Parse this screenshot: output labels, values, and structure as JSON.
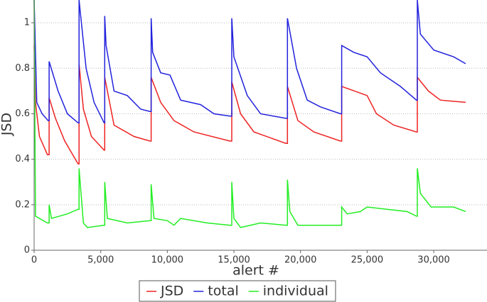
{
  "chart_data": {
    "type": "line",
    "x_label": "alert #",
    "y_label": "JSD",
    "xlim": [
      0,
      34000
    ],
    "ylim": [
      0,
      1.1
    ],
    "xticks": [
      0,
      {
        "value": 5000,
        "label": "5,000"
      },
      {
        "value": 10000,
        "label": "10,000"
      },
      {
        "value": 15000,
        "label": "15,000"
      },
      {
        "value": 20000,
        "label": "20,000"
      },
      {
        "value": 25000,
        "label": "25,000"
      },
      {
        "value": 30000,
        "label": "30,000"
      }
    ],
    "yticks": [
      0,
      0.2,
      0.4,
      0.6,
      0.8,
      1
    ],
    "grid": true,
    "legend": "bottom",
    "series": [
      {
        "name": "JSD",
        "color": "#ee2222",
        "x": [
          0,
          100,
          400,
          1000,
          1125,
          1125,
          1600,
          2300,
          3300,
          3375,
          3375,
          3700,
          4300,
          5250,
          5300,
          5300,
          6000,
          7500,
          8700,
          8785,
          8785,
          9500,
          10500,
          12000,
          14700,
          14840,
          14840,
          15500,
          16500,
          18900,
          19020,
          19020,
          19800,
          21000,
          23000,
          23090,
          23090,
          25000,
          25700,
          27000,
          28700,
          28770,
          28770,
          29600,
          30500,
          32400
        ],
        "values": [
          0.9,
          0.65,
          0.5,
          0.42,
          0.42,
          0.67,
          0.58,
          0.48,
          0.38,
          0.38,
          0.82,
          0.62,
          0.5,
          0.44,
          0.44,
          0.76,
          0.55,
          0.5,
          0.48,
          0.48,
          0.76,
          0.65,
          0.57,
          0.52,
          0.48,
          0.48,
          0.74,
          0.6,
          0.52,
          0.47,
          0.47,
          0.72,
          0.57,
          0.52,
          0.48,
          0.48,
          0.72,
          0.68,
          0.6,
          0.55,
          0.52,
          0.52,
          0.76,
          0.7,
          0.66,
          0.65
        ]
      },
      {
        "name": "total",
        "color": "#2222dd",
        "x": [
          0,
          200,
          600,
          1050,
          1125,
          1125,
          1800,
          2500,
          3300,
          3375,
          3375,
          3900,
          4500,
          5250,
          5300,
          5300,
          5400,
          6000,
          7000,
          8000,
          8700,
          8785,
          8785,
          8900,
          9500,
          10200,
          11000,
          12500,
          13500,
          14700,
          14840,
          14840,
          15000,
          16000,
          17000,
          18900,
          19020,
          19020,
          19700,
          20500,
          21500,
          23000,
          23090,
          23090,
          24000,
          25000,
          26000,
          27500,
          28700,
          28770,
          28770,
          29000,
          30000,
          31500,
          32400
        ],
        "values": [
          1.1,
          0.65,
          0.6,
          0.57,
          0.57,
          0.83,
          0.7,
          0.6,
          0.56,
          0.56,
          1.1,
          0.8,
          0.65,
          0.56,
          0.56,
          1.03,
          0.9,
          0.7,
          0.68,
          0.62,
          0.61,
          0.61,
          1.02,
          0.87,
          0.78,
          0.77,
          0.66,
          0.64,
          0.6,
          0.59,
          0.59,
          1.02,
          0.85,
          0.68,
          0.6,
          0.58,
          0.58,
          1.02,
          0.8,
          0.66,
          0.63,
          0.6,
          0.6,
          0.9,
          0.87,
          0.85,
          0.78,
          0.72,
          0.66,
          0.66,
          1.1,
          0.95,
          0.88,
          0.85,
          0.82
        ]
      },
      {
        "name": "individual",
        "color": "#22ee22",
        "x": [
          0,
          100,
          1000,
          1125,
          1125,
          1300,
          2500,
          3300,
          3375,
          3375,
          3700,
          4000,
          5250,
          5300,
          5300,
          5500,
          7000,
          8700,
          8785,
          8785,
          9000,
          10000,
          10500,
          11000,
          13000,
          14700,
          14840,
          14840,
          15000,
          15500,
          17000,
          18900,
          19020,
          19020,
          19200,
          19800,
          23000,
          23090,
          23090,
          23500,
          24500,
          25000,
          26500,
          28000,
          28700,
          28770,
          28770,
          29000,
          29800,
          31500,
          32400
        ],
        "values": [
          1.1,
          0.15,
          0.12,
          0.12,
          0.2,
          0.14,
          0.16,
          0.18,
          0.18,
          0.36,
          0.12,
          0.1,
          0.11,
          0.11,
          0.3,
          0.14,
          0.12,
          0.13,
          0.13,
          0.29,
          0.14,
          0.13,
          0.11,
          0.14,
          0.12,
          0.11,
          0.11,
          0.3,
          0.14,
          0.1,
          0.12,
          0.11,
          0.11,
          0.31,
          0.17,
          0.11,
          0.11,
          0.11,
          0.19,
          0.16,
          0.17,
          0.19,
          0.18,
          0.17,
          0.15,
          0.15,
          0.36,
          0.25,
          0.19,
          0.19,
          0.17
        ]
      }
    ]
  }
}
